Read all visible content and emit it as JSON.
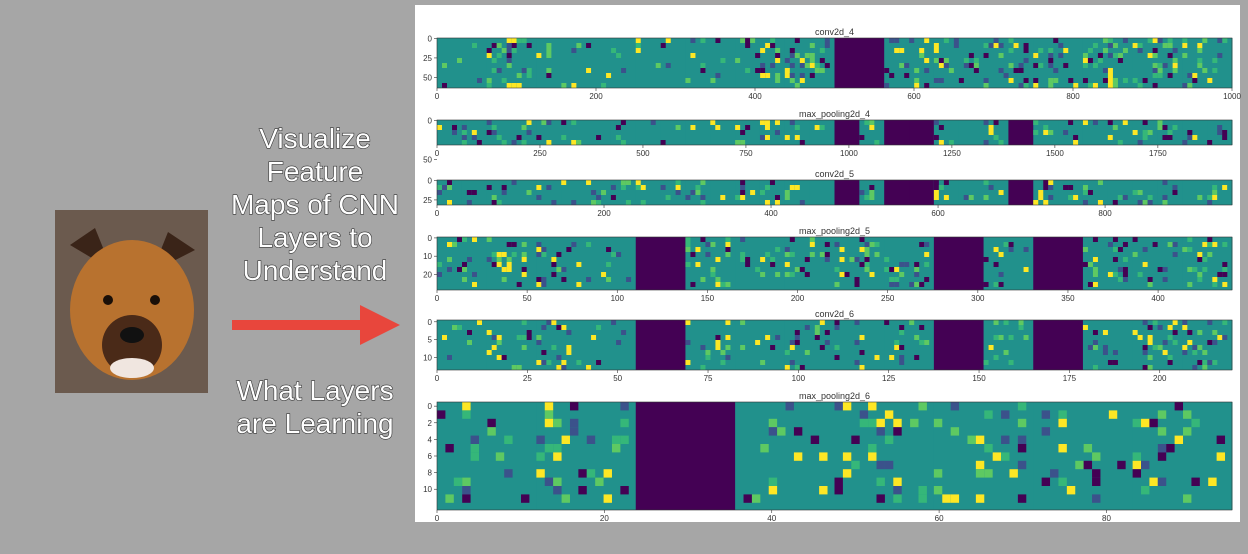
{
  "slide": {
    "lines": [
      "Visualize",
      "Feature",
      "Maps of CNN",
      "Layers to",
      "Understand"
    ],
    "lines2": [
      "What Layers",
      "are Learning"
    ]
  },
  "panels": [
    {
      "title": "conv2d_4",
      "xticks": [
        0,
        200,
        400,
        600,
        800,
        1000
      ],
      "yticks": [
        0,
        25,
        50
      ]
    },
    {
      "title": "max_pooling2d_4",
      "xticks": [
        0,
        250,
        500,
        750,
        1000,
        1250,
        1500,
        1750
      ],
      "yticks": [
        0,
        50
      ]
    },
    {
      "title": "conv2d_5",
      "xticks": [
        0,
        200,
        400,
        600,
        800
      ],
      "yticks": [
        0,
        25
      ]
    },
    {
      "title": "max_pooling2d_5",
      "xticks": [
        0,
        50,
        100,
        150,
        200,
        250,
        300,
        350,
        400
      ],
      "yticks": [
        0,
        10,
        20
      ]
    },
    {
      "title": "conv2d_6",
      "xticks": [
        0,
        25,
        50,
        75,
        100,
        125,
        150,
        175,
        200
      ],
      "yticks": [
        0,
        5,
        10
      ]
    },
    {
      "title": "max_pooling2d_6",
      "xticks": [
        0,
        20,
        40,
        60,
        80
      ],
      "yticks": [
        0,
        2,
        4,
        6,
        8,
        10
      ]
    }
  ]
}
